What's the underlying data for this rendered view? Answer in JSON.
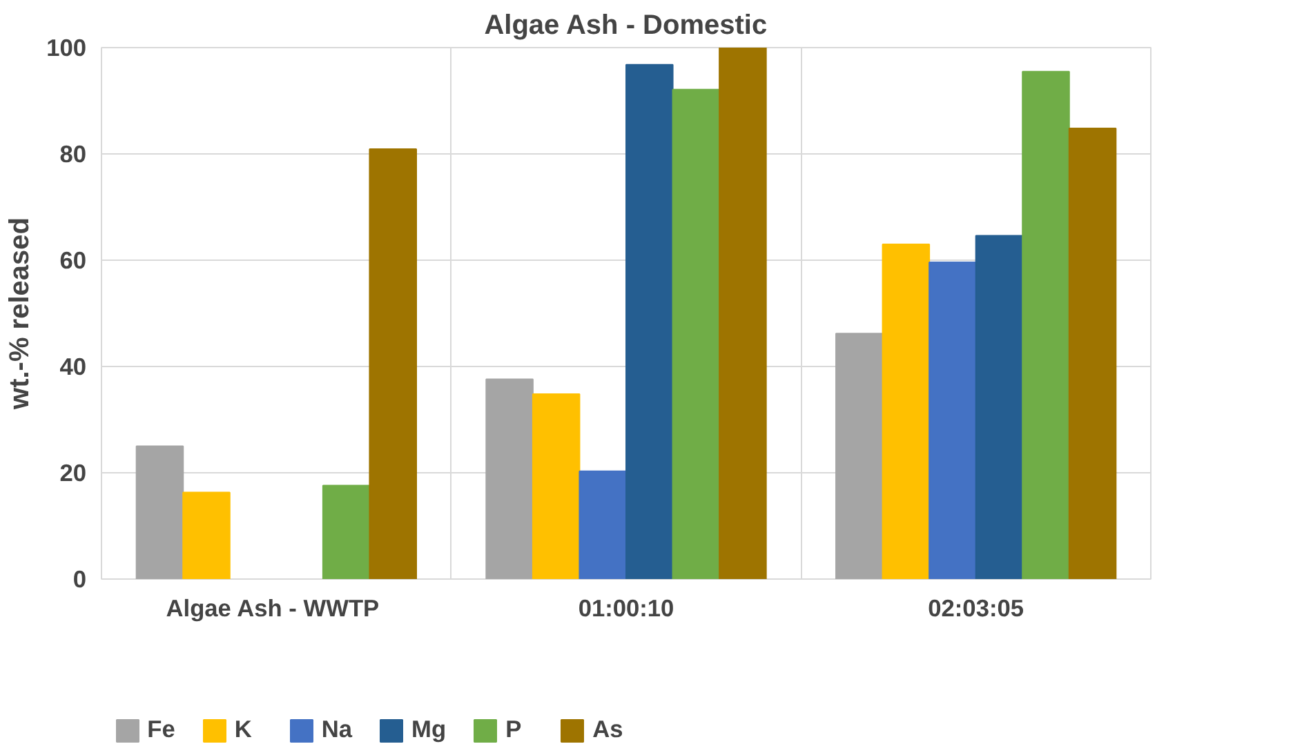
{
  "chart_data": {
    "type": "bar",
    "title": "Algae Ash - Domestic",
    "ylabel": "wt.-% released",
    "categories": [
      "Algae Ash  - WWTP",
      "01:00:10",
      "02:03:05"
    ],
    "series": [
      {
        "name": "Fe",
        "color": "#a5a5a5",
        "values": [
          25,
          37.6,
          46.2
        ]
      },
      {
        "name": "K",
        "color": "#ffc000",
        "values": [
          16.3,
          34.8,
          63
        ]
      },
      {
        "name": "Na",
        "color": "#4472c4",
        "values": [
          null,
          20.3,
          59.6
        ]
      },
      {
        "name": "Mg",
        "color": "#255e91",
        "values": [
          null,
          96.8,
          64.6
        ]
      },
      {
        "name": "P",
        "color": "#70ad47",
        "values": [
          17.6,
          92.1,
          95.5
        ]
      },
      {
        "name": "As",
        "color": "#9e7400",
        "values": [
          80.9,
          100,
          84.8
        ]
      }
    ],
    "ylim": [
      0,
      100
    ],
    "yticks": [
      0,
      20,
      40,
      60,
      80,
      100
    ],
    "grid": true,
    "legend": "bottom"
  }
}
